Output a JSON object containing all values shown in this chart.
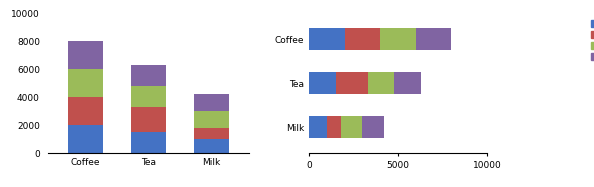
{
  "categories": [
    "Coffee",
    "Tea",
    "Milk"
  ],
  "q1_actual": [
    2000,
    1500,
    1000
  ],
  "q2_actual": [
    2000,
    1800,
    800
  ],
  "q1_budget": [
    2000,
    1500,
    1200
  ],
  "q2_budget": [
    2000,
    1500,
    1200
  ],
  "colors": {
    "Q1 Actual": "#4472C4",
    "Q2 Actual": "#C0504D",
    "Q1 Budget": "#9BBB59",
    "Q2 Budget": "#8064A2"
  },
  "col_ylim": [
    0,
    10000
  ],
  "col_yticks": [
    0,
    2000,
    4000,
    6000,
    8000,
    10000
  ],
  "bar_xlim": [
    0,
    10000
  ],
  "bar_xticks": [
    0,
    5000,
    10000
  ],
  "figsize": [
    5.94,
    1.87
  ],
  "dpi": 100
}
